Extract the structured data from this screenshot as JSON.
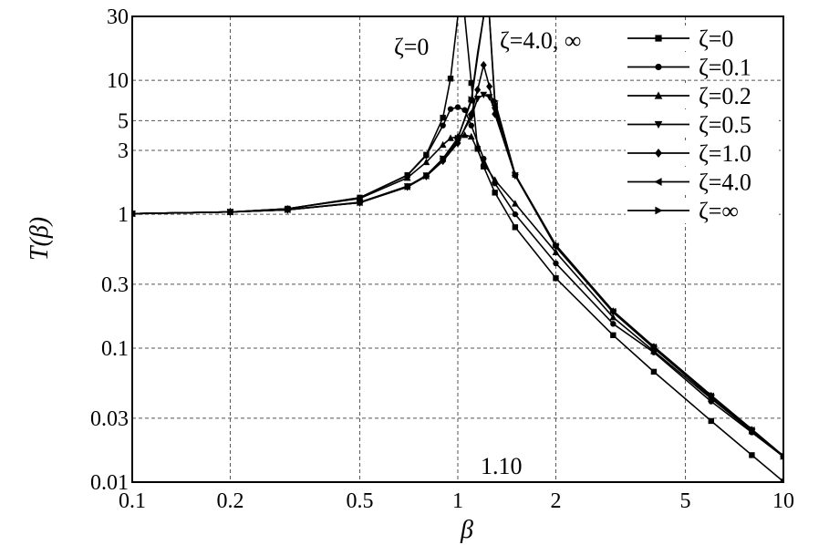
{
  "chart_data": {
    "type": "line",
    "xlabel": "β",
    "ylabel": "T(β)",
    "x_scale": "log",
    "y_scale": "log",
    "xlim": [
      0.1,
      10
    ],
    "ylim": [
      0.01,
      30
    ],
    "grid": true,
    "legend_position": "top-right",
    "x_ticks": [
      {
        "value": 0.1,
        "label": "0.1"
      },
      {
        "value": 0.2,
        "label": "0.2"
      },
      {
        "value": 0.5,
        "label": "0.5"
      },
      {
        "value": 1,
        "label": "1"
      },
      {
        "value": 2,
        "label": "2"
      },
      {
        "value": 5,
        "label": "5"
      },
      {
        "value": 10,
        "label": "10"
      }
    ],
    "y_ticks": [
      {
        "value": 0.01,
        "label": "0.01"
      },
      {
        "value": 0.03,
        "label": "0.03"
      },
      {
        "value": 0.1,
        "label": "0.1"
      },
      {
        "value": 0.3,
        "label": "0.3"
      },
      {
        "value": 1,
        "label": "1"
      },
      {
        "value": 3,
        "label": "3"
      },
      {
        "value": 5,
        "label": "5"
      },
      {
        "value": 10,
        "label": "10"
      },
      {
        "value": 30,
        "label": "30"
      }
    ],
    "series": [
      {
        "name": "ζ=0",
        "marker": "square",
        "curve": [
          [
            0.1,
            1.01
          ],
          [
            0.2,
            1.04
          ],
          [
            0.3,
            1.1
          ],
          [
            0.5,
            1.33
          ],
          [
            0.7,
            1.96
          ],
          [
            0.8,
            2.78
          ],
          [
            0.9,
            5.26
          ],
          [
            0.95,
            10.3
          ],
          [
            1.0,
            30
          ],
          [
            1.05,
            30
          ],
          [
            1.1,
            9.55
          ],
          [
            1.15,
            3.08
          ],
          [
            1.2,
            2.27
          ],
          [
            1.3,
            1.45
          ],
          [
            1.5,
            0.8
          ],
          [
            2,
            0.333
          ],
          [
            3,
            0.125
          ],
          [
            4,
            0.0667
          ],
          [
            6,
            0.0286
          ],
          [
            8,
            0.0159
          ],
          [
            10,
            0.0101
          ]
        ],
        "markers": [
          [
            0.1,
            1.01
          ],
          [
            0.2,
            1.04
          ],
          [
            0.3,
            1.1
          ],
          [
            0.5,
            1.33
          ],
          [
            0.7,
            1.96
          ],
          [
            0.8,
            2.78
          ],
          [
            0.9,
            5.26
          ],
          [
            0.95,
            10.3
          ],
          [
            1.1,
            9.55
          ],
          [
            1.15,
            3.08
          ],
          [
            1.2,
            2.27
          ],
          [
            1.3,
            1.45
          ],
          [
            1.5,
            0.8
          ],
          [
            2,
            0.333
          ],
          [
            3,
            0.125
          ],
          [
            4,
            0.0667
          ],
          [
            6,
            0.0286
          ],
          [
            8,
            0.0159
          ],
          [
            10,
            0.0101
          ]
        ]
      },
      {
        "name": "ζ=0.1",
        "marker": "circle",
        "curve": [
          [
            0.1,
            1.01
          ],
          [
            0.2,
            1.04
          ],
          [
            0.3,
            1.1
          ],
          [
            0.5,
            1.33
          ],
          [
            0.7,
            1.95
          ],
          [
            0.8,
            2.74
          ],
          [
            0.9,
            4.6
          ],
          [
            0.95,
            6.1
          ],
          [
            1.0,
            6.3
          ],
          [
            1.05,
            6.0
          ],
          [
            1.1,
            4.6
          ],
          [
            1.2,
            2.6
          ],
          [
            1.3,
            1.7
          ],
          [
            1.5,
            1.0
          ],
          [
            2,
            0.43
          ],
          [
            3,
            0.152
          ],
          [
            4,
            0.093
          ],
          [
            6,
            0.04
          ],
          [
            8,
            0.0235
          ],
          [
            10,
            0.0155
          ]
        ],
        "markers": [
          [
            0.1,
            1.01
          ],
          [
            0.2,
            1.04
          ],
          [
            0.3,
            1.1
          ],
          [
            0.5,
            1.33
          ],
          [
            0.7,
            1.95
          ],
          [
            0.8,
            2.74
          ],
          [
            0.9,
            4.6
          ],
          [
            0.95,
            6.1
          ],
          [
            1.0,
            6.3
          ],
          [
            1.05,
            6.0
          ],
          [
            1.1,
            4.6
          ],
          [
            1.2,
            2.6
          ],
          [
            1.3,
            1.7
          ],
          [
            1.5,
            1.0
          ],
          [
            2,
            0.43
          ],
          [
            3,
            0.152
          ],
          [
            4,
            0.093
          ],
          [
            6,
            0.04
          ],
          [
            8,
            0.0235
          ],
          [
            10,
            0.0155
          ]
        ]
      },
      {
        "name": "ζ=0.2",
        "marker": "triangle-up",
        "curve": [
          [
            0.1,
            1.01
          ],
          [
            0.2,
            1.04
          ],
          [
            0.3,
            1.1
          ],
          [
            0.5,
            1.31
          ],
          [
            0.7,
            1.87
          ],
          [
            0.8,
            2.45
          ],
          [
            0.9,
            3.3
          ],
          [
            0.95,
            3.7
          ],
          [
            1.0,
            3.8
          ],
          [
            1.05,
            3.9
          ],
          [
            1.1,
            3.8
          ],
          [
            1.2,
            2.4
          ],
          [
            1.3,
            1.8
          ],
          [
            1.5,
            1.2
          ],
          [
            2,
            0.52
          ],
          [
            3,
            0.17
          ],
          [
            4,
            0.095
          ],
          [
            6,
            0.042
          ],
          [
            8,
            0.024
          ],
          [
            10,
            0.0155
          ]
        ],
        "markers": [
          [
            0.1,
            1.01
          ],
          [
            0.2,
            1.04
          ],
          [
            0.3,
            1.1
          ],
          [
            0.5,
            1.31
          ],
          [
            0.7,
            1.87
          ],
          [
            0.8,
            2.45
          ],
          [
            0.9,
            3.3
          ],
          [
            0.95,
            3.7
          ],
          [
            1.0,
            3.8
          ],
          [
            1.05,
            3.9
          ],
          [
            1.1,
            3.8
          ],
          [
            1.2,
            2.4
          ],
          [
            1.3,
            1.8
          ],
          [
            1.5,
            1.2
          ],
          [
            2,
            0.52
          ],
          [
            3,
            0.17
          ],
          [
            4,
            0.095
          ],
          [
            6,
            0.042
          ],
          [
            8,
            0.024
          ],
          [
            10,
            0.0155
          ]
        ]
      },
      {
        "name": "ζ=0.5",
        "marker": "triangle-down",
        "curve": [
          [
            0.1,
            1.01
          ],
          [
            0.2,
            1.04
          ],
          [
            0.3,
            1.08
          ],
          [
            0.5,
            1.23
          ],
          [
            0.7,
            1.62
          ],
          [
            0.8,
            1.95
          ],
          [
            0.9,
            2.6
          ],
          [
            1.0,
            3.5
          ],
          [
            1.1,
            5.3
          ],
          [
            1.15,
            7.3
          ],
          [
            1.2,
            7.8
          ],
          [
            1.25,
            7.5
          ],
          [
            1.3,
            6.0
          ],
          [
            1.5,
            1.95
          ],
          [
            2,
            0.57
          ],
          [
            3,
            0.185
          ],
          [
            4,
            0.1
          ],
          [
            6,
            0.043
          ],
          [
            8,
            0.024
          ],
          [
            10,
            0.0155
          ]
        ],
        "markers": [
          [
            0.1,
            1.01
          ],
          [
            0.2,
            1.04
          ],
          [
            0.3,
            1.08
          ],
          [
            0.5,
            1.23
          ],
          [
            0.7,
            1.62
          ],
          [
            0.8,
            1.95
          ],
          [
            0.9,
            2.6
          ],
          [
            1.0,
            3.5
          ],
          [
            1.1,
            5.3
          ],
          [
            1.15,
            7.3
          ],
          [
            1.2,
            7.8
          ],
          [
            1.25,
            7.5
          ],
          [
            1.3,
            6.0
          ],
          [
            1.5,
            1.95
          ],
          [
            2,
            0.57
          ],
          [
            3,
            0.185
          ],
          [
            4,
            0.1
          ],
          [
            6,
            0.043
          ],
          [
            8,
            0.024
          ],
          [
            10,
            0.0155
          ]
        ]
      },
      {
        "name": "ζ=1.0",
        "marker": "diamond",
        "curve": [
          [
            0.1,
            1.01
          ],
          [
            0.2,
            1.04
          ],
          [
            0.3,
            1.08
          ],
          [
            0.5,
            1.22
          ],
          [
            0.7,
            1.6
          ],
          [
            0.8,
            1.92
          ],
          [
            0.9,
            2.5
          ],
          [
            1.0,
            3.4
          ],
          [
            1.1,
            5.6
          ],
          [
            1.15,
            8.5
          ],
          [
            1.2,
            13
          ],
          [
            1.25,
            9.0
          ],
          [
            1.3,
            5.6
          ],
          [
            1.5,
            1.95
          ],
          [
            2,
            0.58
          ],
          [
            3,
            0.188
          ],
          [
            4,
            0.102
          ],
          [
            6,
            0.044
          ],
          [
            8,
            0.0245
          ],
          [
            10,
            0.0155
          ]
        ],
        "markers": [
          [
            0.1,
            1.01
          ],
          [
            0.2,
            1.04
          ],
          [
            0.3,
            1.08
          ],
          [
            0.5,
            1.22
          ],
          [
            0.7,
            1.6
          ],
          [
            0.8,
            1.92
          ],
          [
            0.9,
            2.5
          ],
          [
            1.0,
            3.4
          ],
          [
            1.1,
            5.6
          ],
          [
            1.15,
            8.5
          ],
          [
            1.2,
            13
          ],
          [
            1.25,
            9.0
          ],
          [
            1.3,
            5.6
          ],
          [
            1.5,
            1.95
          ],
          [
            2,
            0.58
          ],
          [
            3,
            0.188
          ],
          [
            4,
            0.102
          ],
          [
            6,
            0.044
          ],
          [
            8,
            0.0245
          ],
          [
            10,
            0.0155
          ]
        ]
      },
      {
        "name": "ζ=4.0",
        "marker": "triangle-left",
        "curve": [
          [
            0.1,
            1.01
          ],
          [
            0.2,
            1.04
          ],
          [
            0.3,
            1.08
          ],
          [
            0.5,
            1.22
          ],
          [
            0.7,
            1.6
          ],
          [
            0.8,
            1.93
          ],
          [
            0.9,
            2.6
          ],
          [
            1.0,
            3.7
          ],
          [
            1.1,
            7.0
          ],
          [
            1.15,
            15
          ],
          [
            1.2,
            30
          ],
          [
            1.25,
            30
          ],
          [
            1.3,
            6.5
          ],
          [
            1.5,
            1.95
          ],
          [
            2,
            0.58
          ],
          [
            3,
            0.188
          ],
          [
            4,
            0.102
          ],
          [
            6,
            0.044
          ],
          [
            8,
            0.0245
          ],
          [
            10,
            0.0155
          ]
        ],
        "markers": [
          [
            0.1,
            1.01
          ],
          [
            0.2,
            1.04
          ],
          [
            0.3,
            1.08
          ],
          [
            0.5,
            1.22
          ],
          [
            0.7,
            1.6
          ],
          [
            0.8,
            1.93
          ],
          [
            0.9,
            2.6
          ],
          [
            1.0,
            3.7
          ],
          [
            1.1,
            7.0
          ],
          [
            1.3,
            6.5
          ],
          [
            1.5,
            1.95
          ],
          [
            2,
            0.58
          ],
          [
            3,
            0.188
          ],
          [
            4,
            0.102
          ],
          [
            6,
            0.044
          ],
          [
            8,
            0.0245
          ],
          [
            10,
            0.0155
          ]
        ]
      },
      {
        "name": "ζ=∞",
        "marker": "triangle-right",
        "curve": [
          [
            0.1,
            1.01
          ],
          [
            0.2,
            1.04
          ],
          [
            0.3,
            1.08
          ],
          [
            0.5,
            1.22
          ],
          [
            0.7,
            1.6
          ],
          [
            0.8,
            1.93
          ],
          [
            0.9,
            2.6
          ],
          [
            1.0,
            3.7
          ],
          [
            1.1,
            7.2
          ],
          [
            1.15,
            16
          ],
          [
            1.2,
            30
          ],
          [
            1.25,
            30
          ],
          [
            1.3,
            7.0
          ],
          [
            1.5,
            1.98
          ],
          [
            2,
            0.59
          ],
          [
            3,
            0.19
          ],
          [
            4,
            0.103
          ],
          [
            6,
            0.0445
          ],
          [
            8,
            0.0248
          ],
          [
            10,
            0.0157
          ]
        ],
        "markers": [
          [
            0.1,
            1.01
          ],
          [
            0.2,
            1.04
          ],
          [
            0.3,
            1.08
          ],
          [
            0.5,
            1.22
          ],
          [
            0.7,
            1.6
          ],
          [
            0.8,
            1.93
          ],
          [
            0.9,
            2.6
          ],
          [
            1.0,
            3.7
          ],
          [
            1.1,
            7.2
          ],
          [
            1.3,
            7.0
          ],
          [
            1.5,
            1.98
          ],
          [
            2,
            0.59
          ],
          [
            3,
            0.19
          ],
          [
            4,
            0.103
          ],
          [
            6,
            0.0445
          ],
          [
            8,
            0.0248
          ],
          [
            10,
            0.0157
          ]
        ]
      }
    ],
    "annotations": [
      {
        "text": "ζ=0"
      },
      {
        "text": "ζ=4.0, ∞"
      },
      {
        "text": "1.10"
      }
    ],
    "colors": {
      "line": "#000000",
      "grid": "#555555",
      "background": "#ffffff"
    }
  }
}
